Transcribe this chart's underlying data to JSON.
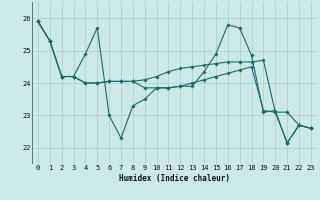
{
  "xlabel": "Humidex (Indice chaleur)",
  "ylabel": "",
  "bg_color": "#cce8e8",
  "grid_color": "#b0d0d0",
  "line_color": "#1a6e6a",
  "marker_color": "#1a6e6a",
  "xlim": [
    -0.5,
    23.5
  ],
  "ylim": [
    21.5,
    26.5
  ],
  "yticks": [
    22,
    23,
    24,
    25,
    26
  ],
  "xticks": [
    0,
    1,
    2,
    3,
    4,
    5,
    6,
    7,
    8,
    9,
    10,
    11,
    12,
    13,
    14,
    15,
    16,
    17,
    18,
    19,
    20,
    21,
    22,
    23
  ],
  "series": [
    [
      25.9,
      25.3,
      24.2,
      24.2,
      24.9,
      25.7,
      23.0,
      22.3,
      23.3,
      23.5,
      23.85,
      23.85,
      23.9,
      23.9,
      24.35,
      24.9,
      25.8,
      25.7,
      24.85,
      23.1,
      23.15,
      22.15,
      22.7,
      22.6
    ],
    [
      25.9,
      25.3,
      24.2,
      24.2,
      24.0,
      24.0,
      24.05,
      24.05,
      24.05,
      24.1,
      24.2,
      24.35,
      24.45,
      24.5,
      24.55,
      24.6,
      24.65,
      24.65,
      24.65,
      24.7,
      23.1,
      23.1,
      22.7,
      22.6
    ],
    [
      25.9,
      25.3,
      24.2,
      24.2,
      24.0,
      24.0,
      24.05,
      24.05,
      24.05,
      23.85,
      23.85,
      23.85,
      23.9,
      24.0,
      24.1,
      24.2,
      24.3,
      24.4,
      24.5,
      23.15,
      23.1,
      22.15,
      22.7,
      22.6
    ]
  ]
}
